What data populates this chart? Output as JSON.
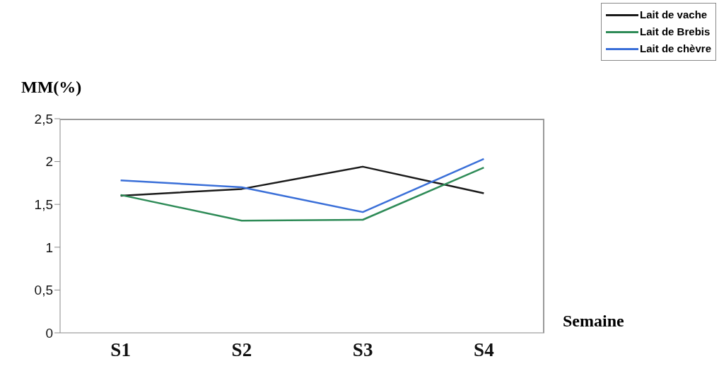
{
  "chart_data": {
    "type": "line",
    "ylabel": "MM(%)",
    "xlabel": "Semaine",
    "categories": [
      "S1",
      "S2",
      "S3",
      "S4"
    ],
    "series": [
      {
        "name": "Lait de vache",
        "color": "#1a1a1a",
        "values": [
          1.6,
          1.68,
          1.94,
          1.63
        ]
      },
      {
        "name": "Lait de Brebis",
        "color": "#2e8b57",
        "values": [
          1.61,
          1.31,
          1.32,
          1.93
        ]
      },
      {
        "name": "Lait de chèvre",
        "color": "#3a6fd8",
        "values": [
          1.78,
          1.7,
          1.41,
          2.03
        ]
      }
    ],
    "ylim": [
      0,
      2.5
    ],
    "yticks": [
      0,
      {
        "value": 0.5,
        "label": "0,5"
      },
      1,
      {
        "value": 1.5,
        "label": "1,5"
      },
      2,
      {
        "value": 2.5,
        "label": "2,5"
      }
    ],
    "grid": false,
    "legend": "top right",
    "marker": "none",
    "line_style": "solid"
  }
}
